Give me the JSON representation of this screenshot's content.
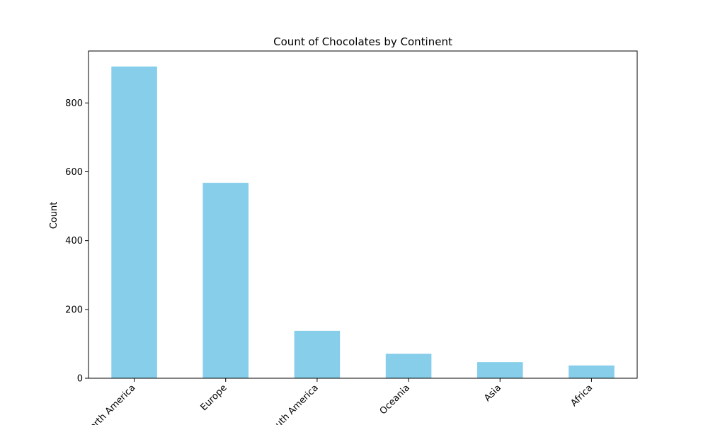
{
  "chart_data": {
    "type": "bar",
    "title": "Count of Chocolates by Continent",
    "xlabel": "",
    "ylabel": "Count",
    "categories": [
      "North America",
      "Europe",
      "South America",
      "Oceania",
      "Asia",
      "Africa"
    ],
    "values": [
      906,
      568,
      138,
      71,
      47,
      37
    ],
    "yticks": [
      0,
      200,
      400,
      600,
      800
    ],
    "ylim": [
      0,
      951
    ],
    "bar_color": "#87CEEB",
    "grid": false,
    "legend": "none"
  }
}
